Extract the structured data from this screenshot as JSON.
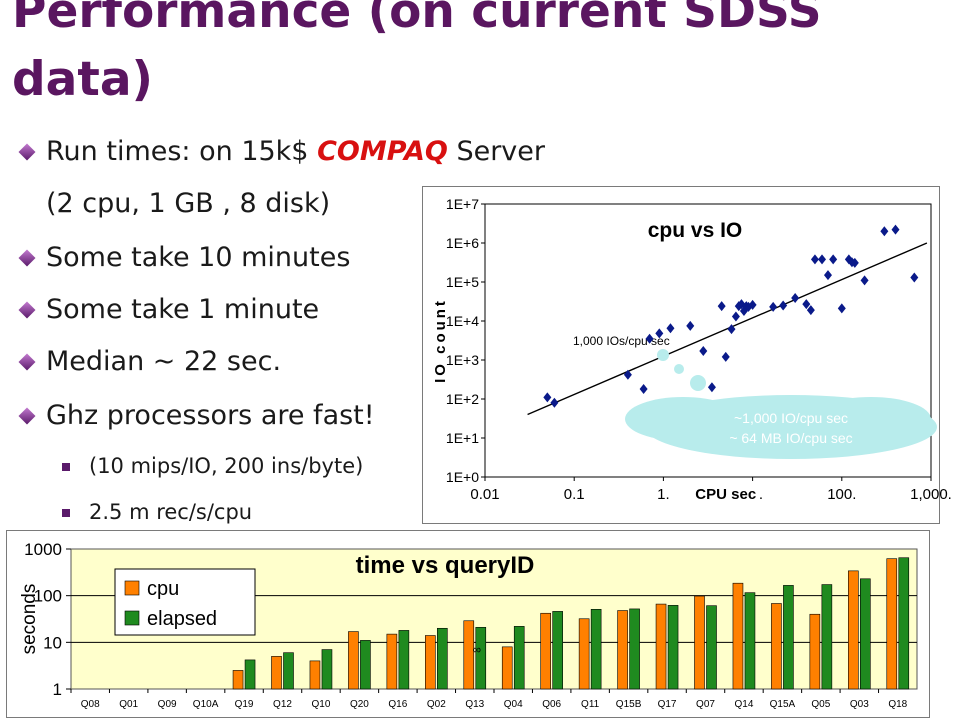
{
  "slide": {
    "title_line1": "Performance (on current SDSS",
    "title_line2": "data)",
    "bullets": [
      {
        "level": 1,
        "parts": [
          "Run times: on 15k$ ",
          "COMPAQ",
          " Server"
        ]
      },
      {
        "level": 1,
        "text": "(2 cpu, 1 GB , 8 disk)"
      },
      {
        "level": 1,
        "text": "Some take 10 minutes"
      },
      {
        "level": 1,
        "text": "Some take 1 minute"
      },
      {
        "level": 1,
        "text": "Median ~ 22 sec."
      },
      {
        "level": 1,
        "text": "Ghz processors are fast!"
      },
      {
        "level": 2,
        "text": "(10 mips/IO, 200 ins/byte)"
      },
      {
        "level": 2,
        "text": "2.5 m rec/s/cpu"
      }
    ]
  },
  "colors": {
    "title": "#5a1660",
    "compaq": "#d81010",
    "cpu_bar": "#ff8000",
    "elapsed_bar": "#1f8a1f",
    "scatter_marker": "#0a1a8a",
    "plot_background": "#ffffcc",
    "cloud": "#b8ecec"
  },
  "chart_data": [
    {
      "type": "scatter",
      "title": "cpu vs IO",
      "xlabel": "CPU sec",
      "ylabel": "IO count",
      "x_scale": "log",
      "y_scale": "log",
      "xlim": [
        0.01,
        1000
      ],
      "ylim": [
        1,
        10000000
      ],
      "x_ticks": [
        0.01,
        0.1,
        1,
        10,
        100,
        1000
      ],
      "x_tick_labels": [
        "0.01",
        "0.1",
        "1.",
        "10.",
        "100.",
        "1,000."
      ],
      "y_ticks": [
        1,
        10,
        100,
        1000,
        10000,
        100000,
        1000000,
        10000000
      ],
      "y_tick_labels": [
        "1E+0",
        "1E+1",
        "1E+2",
        "1E+3",
        "1E+4",
        "1E+5",
        "1E+6",
        "1E+7"
      ],
      "trend_label": "1,000 IOs/cpu sec",
      "trend_line": [
        [
          0.03,
          40
        ],
        [
          900,
          1000000
        ]
      ],
      "cloud_lines": [
        "~1,000 IO/cpu sec",
        "~ 64 MB IO/cpu sec"
      ],
      "points": [
        [
          0.05,
          110
        ],
        [
          0.06,
          80
        ],
        [
          0.4,
          420
        ],
        [
          0.6,
          180
        ],
        [
          0.7,
          3500
        ],
        [
          0.9,
          4800
        ],
        [
          1.2,
          6500
        ],
        [
          2,
          7500
        ],
        [
          2.8,
          1700
        ],
        [
          3.5,
          200
        ],
        [
          4.5,
          24000
        ],
        [
          5,
          1200
        ],
        [
          5.8,
          6200
        ],
        [
          6.5,
          13000
        ],
        [
          7,
          24000
        ],
        [
          7.5,
          27000
        ],
        [
          8,
          18000
        ],
        [
          8.5,
          24000
        ],
        [
          9,
          23000
        ],
        [
          10,
          26000
        ],
        [
          17,
          23000
        ],
        [
          22,
          25000
        ],
        [
          30,
          39000
        ],
        [
          40,
          27000
        ],
        [
          45,
          19000
        ],
        [
          50,
          380000
        ],
        [
          60,
          380000
        ],
        [
          70,
          150000
        ],
        [
          80,
          380000
        ],
        [
          100,
          21000
        ],
        [
          120,
          380000
        ],
        [
          130,
          320000
        ],
        [
          140,
          310000
        ],
        [
          180,
          110000
        ],
        [
          300,
          2000000
        ],
        [
          400,
          2200000
        ],
        [
          650,
          130000
        ]
      ]
    },
    {
      "type": "bar",
      "title": "time vs queryID",
      "ylabel": "seconds",
      "y_scale": "log",
      "ylim": [
        1,
        1000
      ],
      "y_ticks": [
        1,
        10,
        100,
        1000
      ],
      "y_tick_labels": [
        "1",
        "10",
        "100",
        "1000"
      ],
      "legend_position": "top-left",
      "categories": [
        "Q08",
        "Q01",
        "Q09",
        "Q10A",
        "Q19",
        "Q12",
        "Q10",
        "Q20",
        "Q16",
        "Q02",
        "Q13",
        "Q04",
        "Q06",
        "Q11",
        "Q15B",
        "Q17",
        "Q07",
        "Q14",
        "Q15A",
        "Q05",
        "Q03",
        "Q18"
      ],
      "series": [
        {
          "name": "cpu",
          "values": [
            null,
            null,
            null,
            null,
            2.5,
            5,
            4,
            17,
            15,
            14,
            29,
            8,
            42,
            32,
            48,
            66,
            98,
            185,
            68,
            40,
            340,
            620
          ]
        },
        {
          "name": "elapsed",
          "values": [
            null,
            null,
            null,
            null,
            4.2,
            6,
            7,
            11,
            18,
            20,
            21,
            22,
            46,
            51,
            52,
            62,
            61,
            116,
            166,
            173,
            230,
            650
          ]
        }
      ],
      "annotation": "∞"
    }
  ]
}
